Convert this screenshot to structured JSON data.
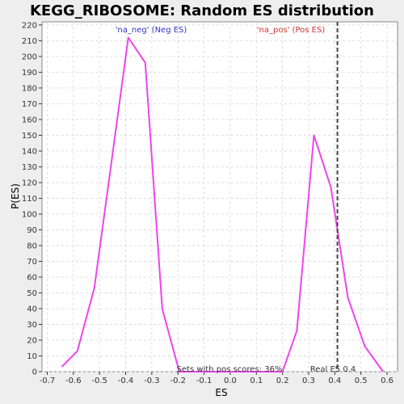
{
  "chart_data": {
    "type": "line",
    "title": "KEGG_RIBOSOME: Random ES distribution",
    "xlabel": "ES",
    "ylabel": "P(ES)",
    "xlim": [
      -0.72,
      0.64
    ],
    "ylim": [
      0,
      222
    ],
    "xticks": [
      -0.7,
      -0.6,
      -0.5,
      -0.4,
      -0.3,
      -0.2,
      -0.1,
      0.0,
      0.1,
      0.2,
      0.3,
      0.4,
      0.5,
      0.6
    ],
    "xtick_labels": [
      "-0.7",
      "-0.6",
      "-0.5",
      "-0.4",
      "-0.3",
      "-0.2",
      "-0.1",
      "0.0",
      "0.1",
      "0.2",
      "0.3",
      "0.4",
      "0.5",
      "0.6"
    ],
    "yticks": [
      0,
      10,
      20,
      30,
      40,
      50,
      60,
      70,
      80,
      90,
      100,
      110,
      120,
      130,
      140,
      150,
      160,
      170,
      180,
      190,
      200,
      210,
      220
    ],
    "ytick_labels": [
      "0",
      "10",
      "20",
      "30",
      "40",
      "50",
      "60",
      "70",
      "80",
      "90",
      "100",
      "110",
      "120",
      "130",
      "140",
      "150",
      "160",
      "170",
      "180",
      "190",
      "200",
      "210",
      "220"
    ],
    "grid": true,
    "line_color": "#ee44ee",
    "series": [
      {
        "name": "",
        "x": [
          -0.645,
          -0.585,
          -0.52,
          -0.46,
          -0.39,
          -0.325,
          -0.26,
          -0.195,
          0.0,
          0.2,
          0.255,
          0.32,
          0.385,
          0.45,
          0.515,
          0.585
        ],
        "y": [
          3,
          13,
          53,
          126,
          212,
          196,
          40,
          0,
          0,
          0,
          26,
          150,
          117,
          47,
          16,
          0
        ]
      }
    ],
    "real_es": 0.41,
    "annotations": {
      "neg_label": "'na_neg' (Neg ES)",
      "neg_color": "#3333cc",
      "pos_label": "'na_pos' (Pos ES)",
      "pos_color": "#cc3333",
      "pos_scores": "Sets with pos scores: 36%",
      "real_es_label": "Real ES 0.4"
    }
  }
}
